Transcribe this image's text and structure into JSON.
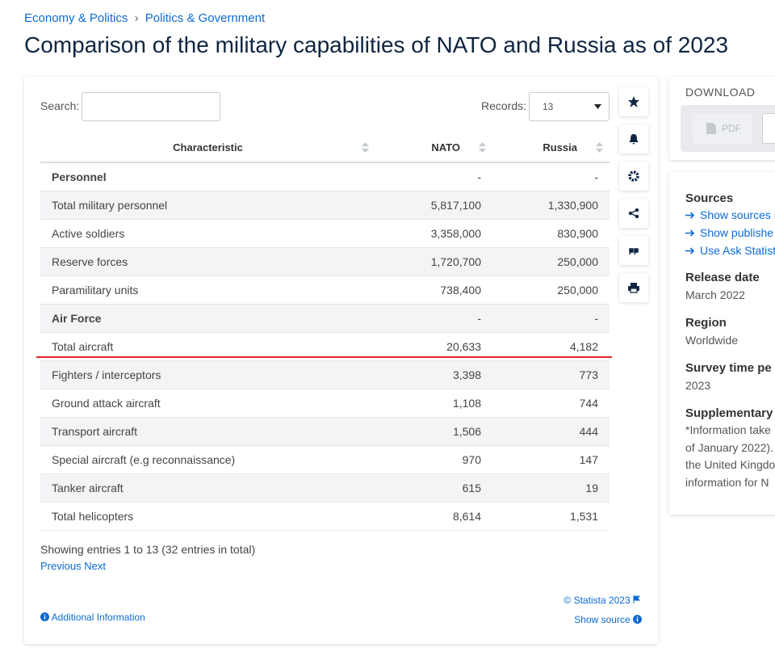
{
  "breadcrumb": {
    "items": [
      "Economy & Politics",
      "Politics & Government"
    ],
    "separator": "›"
  },
  "title": "Comparison of the military capabilities of NATO and Russia as of 2023",
  "controls": {
    "search_label": "Search:",
    "records_label": "Records:",
    "records_value": "13"
  },
  "table": {
    "header": [
      "Characteristic",
      "NATO",
      "Russia"
    ],
    "rows": [
      [
        "Personnel",
        "-",
        "-"
      ],
      [
        "Total military personnel",
        "5,817,100",
        "1,330,900"
      ],
      [
        "Active soldiers",
        "3,358,000",
        "830,900"
      ],
      [
        "Reserve forces",
        "1,720,700",
        "250,000"
      ],
      [
        "Paramilitary units",
        "738,400",
        "250,000"
      ],
      [
        "Air Force",
        "-",
        "-"
      ],
      [
        "Total aircraft",
        "20,633",
        "4,182"
      ],
      [
        "Fighters / interceptors",
        "3,398",
        "773"
      ],
      [
        "Ground attack aircraft",
        "1,108",
        "744"
      ],
      [
        "Transport aircraft",
        "1,506",
        "444"
      ],
      [
        "Special aircraft (e.g reconnaissance)",
        "970",
        "147"
      ],
      [
        "Tanker aircraft",
        "615",
        "19"
      ],
      [
        "Total helicopters",
        "8,614",
        "1,531"
      ]
    ]
  },
  "footer": {
    "entries": "Showing entries 1 to 13 (32 entries in total)",
    "previous": "Previous",
    "next": "Next",
    "copyright": "© Statista 2023",
    "additional": "Additional Information",
    "show_source": "Show source"
  },
  "sidebar": {
    "download": "DOWNLOAD",
    "pdf": "PDF",
    "sources_title": "Sources",
    "sources_links": [
      "Show sources i",
      "Show publishe",
      "Use Ask Statist"
    ],
    "details": [
      {
        "label": "Release date",
        "value": "March 2022"
      },
      {
        "label": "Region",
        "value": "Worldwide"
      },
      {
        "label": "Survey time pe",
        "value": "2023"
      }
    ],
    "supplementary": {
      "label": "Supplementary",
      "lines": [
        "*Information take",
        "of January 2022). ",
        "the United Kingdo",
        "information for N"
      ]
    }
  }
}
